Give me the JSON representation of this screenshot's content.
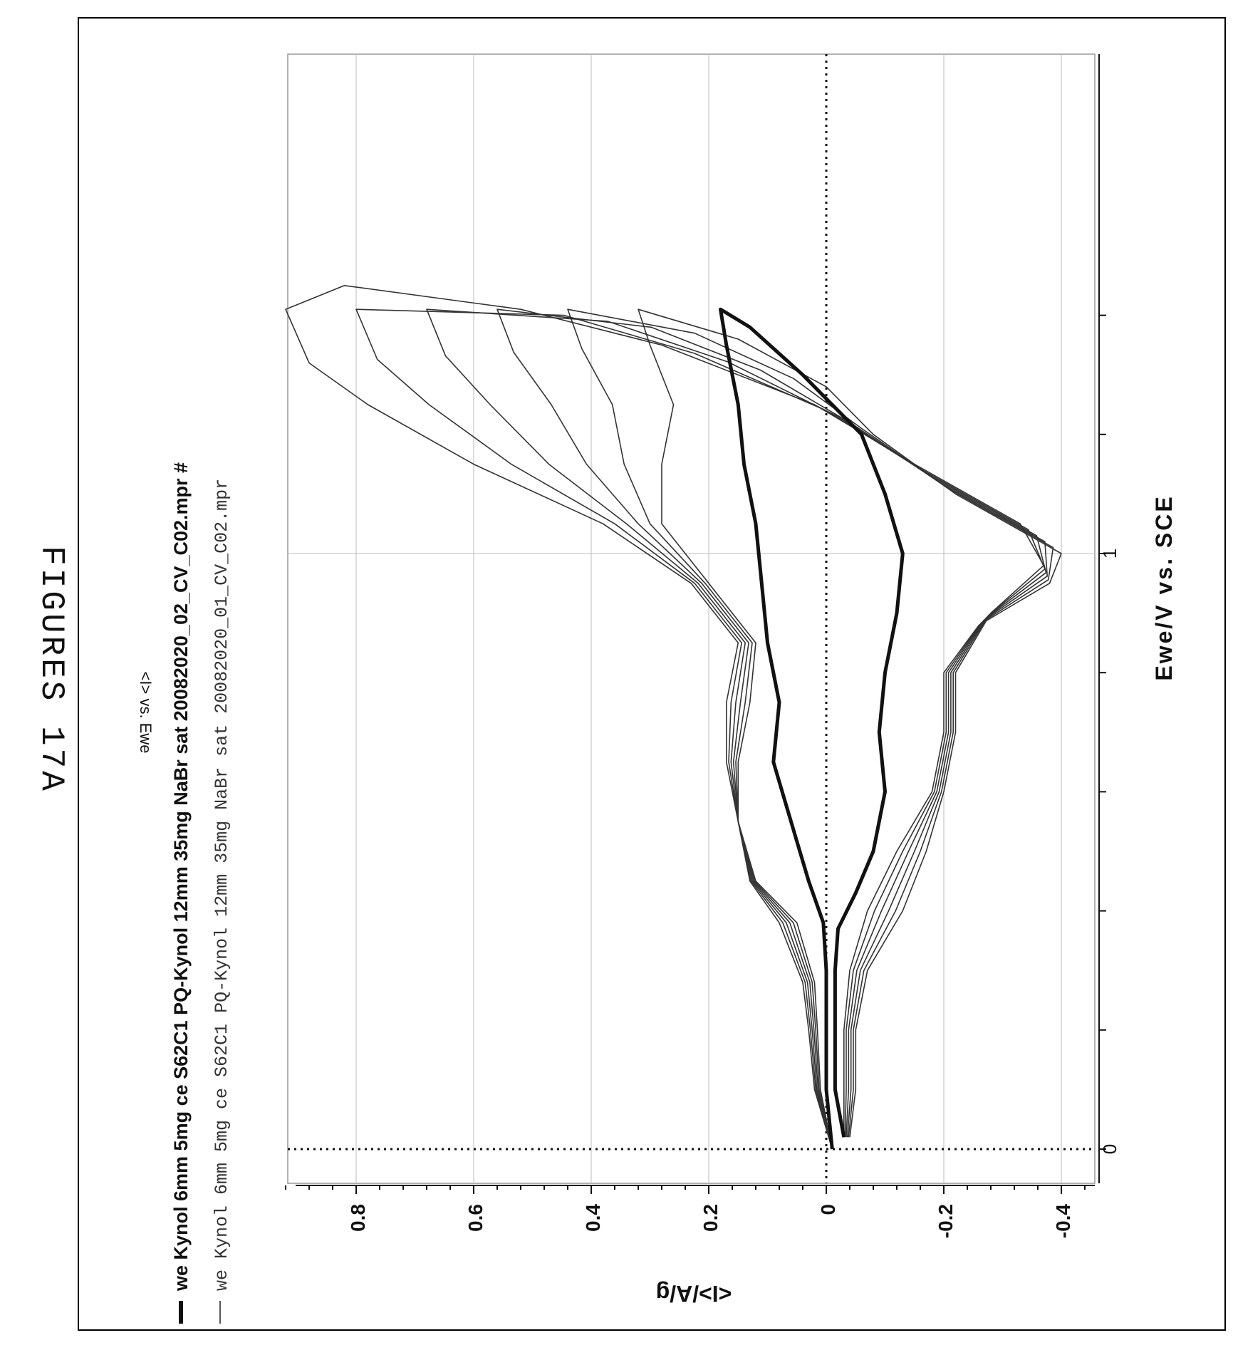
{
  "figure_label": "FIGURES 17A",
  "chart_data": {
    "type": "line",
    "title": "<I> vs. Ewe",
    "xlabel": "Ewe/V vs. SCE",
    "ylabel": "<I>/A/g",
    "xlim": [
      -0.05,
      1.45
    ],
    "ylim": [
      -0.46,
      0.94
    ],
    "x_ticks": [
      0,
      1
    ],
    "x_tick_labels": [
      "0",
      "1"
    ],
    "y_ticks": [
      -0.4,
      -0.2,
      0,
      0.2,
      0.4,
      0.6,
      0.8
    ],
    "y_tick_labels": [
      "-0.4",
      "-0.2",
      "0",
      "0.2",
      "0.4",
      "0.6",
      "0.8"
    ],
    "grid": true,
    "legend_position": "top",
    "legend": [
      "we Kynol 6mm 5mg ce S62C1 PQ-Kynol 12mm 35mg NaBr sat 20082020_02_CV_C02.mpr #",
      "we Kynol 6mm 5mg ce S62C1 PQ-Kynol 12mm 35mg NaBr sat 20082020_01_CV_C02.mpr"
    ],
    "series": [
      {
        "name": "we Kynol 6mm 5mg ce S62C1 PQ-Kynol 12mm 35mg NaBr sat 20082020_02_CV_C02.mpr #",
        "color": "#111111",
        "style": "bold",
        "forward": [
          [
            0,
            -0.01
          ],
          [
            0.1,
            0.0
          ],
          [
            0.2,
            0.0
          ],
          [
            0.3,
            0.0
          ],
          [
            0.38,
            0.005
          ],
          [
            0.45,
            0.03
          ],
          [
            0.55,
            0.06
          ],
          [
            0.65,
            0.09
          ],
          [
            0.75,
            0.08
          ],
          [
            0.85,
            0.1
          ],
          [
            0.95,
            0.11
          ],
          [
            1.05,
            0.12
          ],
          [
            1.15,
            0.14
          ],
          [
            1.25,
            0.15
          ],
          [
            1.35,
            0.17
          ],
          [
            1.41,
            0.18
          ]
        ],
        "reverse": [
          [
            1.41,
            0.18
          ],
          [
            1.38,
            0.13
          ],
          [
            1.3,
            0.04
          ],
          [
            1.2,
            -0.06
          ],
          [
            1.1,
            -0.1
          ],
          [
            1.0,
            -0.13
          ],
          [
            0.9,
            -0.12
          ],
          [
            0.8,
            -0.1
          ],
          [
            0.7,
            -0.09
          ],
          [
            0.6,
            -0.1
          ],
          [
            0.5,
            -0.08
          ],
          [
            0.43,
            -0.05
          ],
          [
            0.37,
            -0.02
          ],
          [
            0.3,
            -0.015
          ],
          [
            0.2,
            -0.015
          ],
          [
            0.1,
            -0.015
          ],
          [
            0.02,
            -0.03
          ]
        ]
      },
      {
        "name": "we Kynol 6mm 5mg ce S62C1 PQ-Kynol 12mm 35mg NaBr sat 20082020_01_CV_C02.mpr",
        "color": "#333333",
        "style": "thin",
        "cycles": 6,
        "first_cycle_forward": [
          [
            0,
            -0.01
          ],
          [
            0.1,
            0.02
          ],
          [
            0.2,
            0.03
          ],
          [
            0.28,
            0.04
          ],
          [
            0.38,
            0.08
          ],
          [
            0.45,
            0.13
          ],
          [
            0.55,
            0.15
          ],
          [
            0.65,
            0.17
          ],
          [
            0.75,
            0.17
          ],
          [
            0.85,
            0.15
          ],
          [
            0.95,
            0.23
          ],
          [
            1.05,
            0.38
          ],
          [
            1.15,
            0.6
          ],
          [
            1.25,
            0.78
          ],
          [
            1.32,
            0.88
          ],
          [
            1.41,
            0.92
          ],
          [
            1.45,
            0.82
          ]
        ],
        "first_cycle_reverse": [
          [
            1.45,
            0.82
          ],
          [
            1.41,
            0.52
          ],
          [
            1.35,
            0.28
          ],
          [
            1.25,
            0.02
          ],
          [
            1.15,
            -0.15
          ],
          [
            1.05,
            -0.33
          ],
          [
            0.98,
            -0.37
          ],
          [
            0.9,
            -0.28
          ],
          [
            0.8,
            -0.22
          ],
          [
            0.7,
            -0.22
          ],
          [
            0.6,
            -0.2
          ],
          [
            0.5,
            -0.17
          ],
          [
            0.4,
            -0.13
          ],
          [
            0.3,
            -0.07
          ],
          [
            0.2,
            -0.05
          ],
          [
            0.1,
            -0.05
          ],
          [
            0.02,
            -0.04
          ]
        ],
        "last_cycle_forward": [
          [
            0,
            -0.01
          ],
          [
            0.1,
            0.01
          ],
          [
            0.2,
            0.015
          ],
          [
            0.28,
            0.02
          ],
          [
            0.38,
            0.05
          ],
          [
            0.45,
            0.12
          ],
          [
            0.55,
            0.15
          ],
          [
            0.65,
            0.15
          ],
          [
            0.75,
            0.13
          ],
          [
            0.85,
            0.12
          ],
          [
            0.95,
            0.2
          ],
          [
            1.05,
            0.28
          ],
          [
            1.15,
            0.28
          ],
          [
            1.25,
            0.26
          ],
          [
            1.35,
            0.3
          ],
          [
            1.41,
            0.32
          ]
        ],
        "last_cycle_reverse": [
          [
            1.41,
            0.32
          ],
          [
            1.36,
            0.15
          ],
          [
            1.28,
            0.0
          ],
          [
            1.2,
            -0.08
          ],
          [
            1.1,
            -0.22
          ],
          [
            1.0,
            -0.4
          ],
          [
            0.95,
            -0.38
          ],
          [
            0.88,
            -0.26
          ],
          [
            0.8,
            -0.2
          ],
          [
            0.7,
            -0.2
          ],
          [
            0.6,
            -0.18
          ],
          [
            0.5,
            -0.12
          ],
          [
            0.4,
            -0.07
          ],
          [
            0.3,
            -0.04
          ],
          [
            0.2,
            -0.03
          ],
          [
            0.1,
            -0.03
          ],
          [
            0.02,
            -0.03
          ]
        ]
      }
    ]
  }
}
